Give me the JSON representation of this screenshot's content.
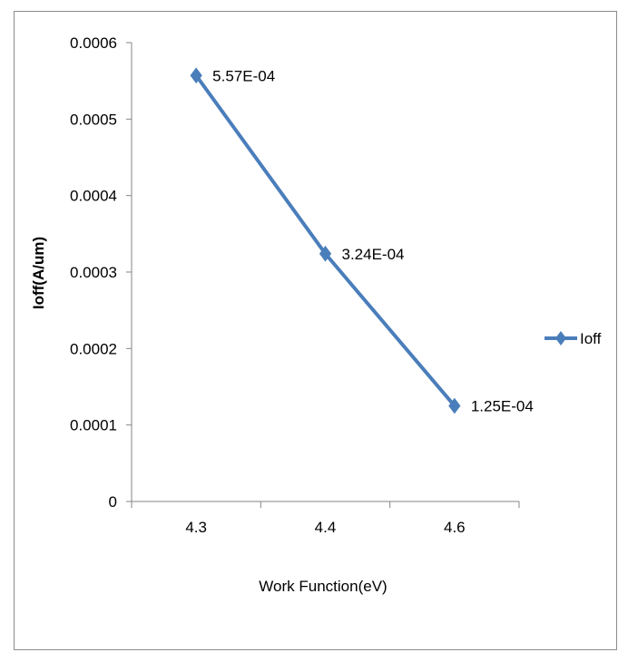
{
  "chart_data": {
    "type": "line",
    "categories": [
      "4.3",
      "4.4",
      "4.6"
    ],
    "series": [
      {
        "name": "Ioff",
        "values": [
          0.000557,
          0.000324,
          0.000125
        ],
        "data_labels": [
          "5.57E-04",
          "3.24E-04",
          "1.25E-04"
        ],
        "color": "#4a7ebb",
        "marker": "diamond"
      }
    ],
    "xlabel": "Work Function(eV)",
    "ylabel": "Ioff(A/um)",
    "ylim": [
      0,
      0.0006
    ],
    "yticks": [
      0,
      0.0001,
      0.0002,
      0.0003,
      0.0004,
      0.0005,
      0.0006
    ],
    "ytick_labels": [
      "0",
      "0.0001",
      "0.0002",
      "0.0003",
      "0.0004",
      "0.0005",
      "0.0006"
    ],
    "grid": false,
    "legend_position": "right"
  }
}
